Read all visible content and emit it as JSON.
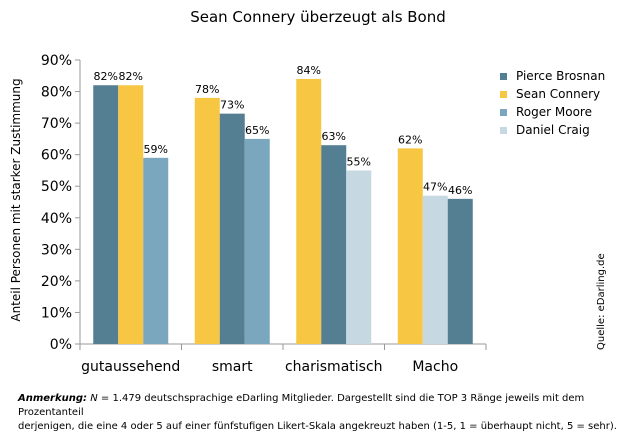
{
  "chart_data": {
    "type": "bar",
    "title": "Sean Connery überzeugt als Bond",
    "ylabel": "Anteil Personen mit starker Zustimmung",
    "xlabel": "",
    "ylim": [
      0,
      90
    ],
    "yticks": [
      "0%",
      "10%",
      "20%",
      "30%",
      "40%",
      "50%",
      "60%",
      "70%",
      "80%",
      "90%"
    ],
    "value_suffix": "%",
    "legend_position": "top-right",
    "categories": [
      "gutaussehend",
      "smart",
      "charismatisch",
      "Macho"
    ],
    "groups": [
      {
        "category": "gutaussehend",
        "bars": [
          {
            "series": "Pierce Brosnan",
            "value": 82
          },
          {
            "series": "Sean Connery",
            "value": 82
          },
          {
            "series": "Roger Moore",
            "value": 59
          }
        ]
      },
      {
        "category": "smart",
        "bars": [
          {
            "series": "Sean Connery",
            "value": 78
          },
          {
            "series": "Pierce Brosnan",
            "value": 73
          },
          {
            "series": "Roger Moore",
            "value": 65
          }
        ]
      },
      {
        "category": "charismatisch",
        "bars": [
          {
            "series": "Sean Connery",
            "value": 84
          },
          {
            "series": "Pierce Brosnan",
            "value": 63
          },
          {
            "series": "Daniel Craig",
            "value": 55
          }
        ]
      },
      {
        "category": "Macho",
        "bars": [
          {
            "series": "Sean Connery",
            "value": 62
          },
          {
            "series": "Daniel Craig",
            "value": 47
          },
          {
            "series": "Pierce Brosnan",
            "value": 46
          }
        ]
      }
    ],
    "series": [
      {
        "name": "Pierce Brosnan",
        "color": "#547e92"
      },
      {
        "name": "Sean Connery",
        "color": "#f7c744"
      },
      {
        "name": "Roger Moore",
        "color": "#7aa7bd"
      },
      {
        "name": "Daniel Craig",
        "color": "#c6d9e2"
      }
    ],
    "source": "Quelle: eDarling.de"
  },
  "note": {
    "label": "Anmerkung:",
    "n_symbol": "N",
    "text1": " = 1.479 deutschsprachige eDarling Mitglieder. Dargestellt sind die TOP 3 Ränge jeweils mit dem Prozentanteil",
    "text2": "derjenigen, die eine 4 oder 5 auf einer fünfstufigen Likert-Skala angekreuzt haben (1-5, 1 = überhaupt nicht, 5 = sehr)."
  }
}
